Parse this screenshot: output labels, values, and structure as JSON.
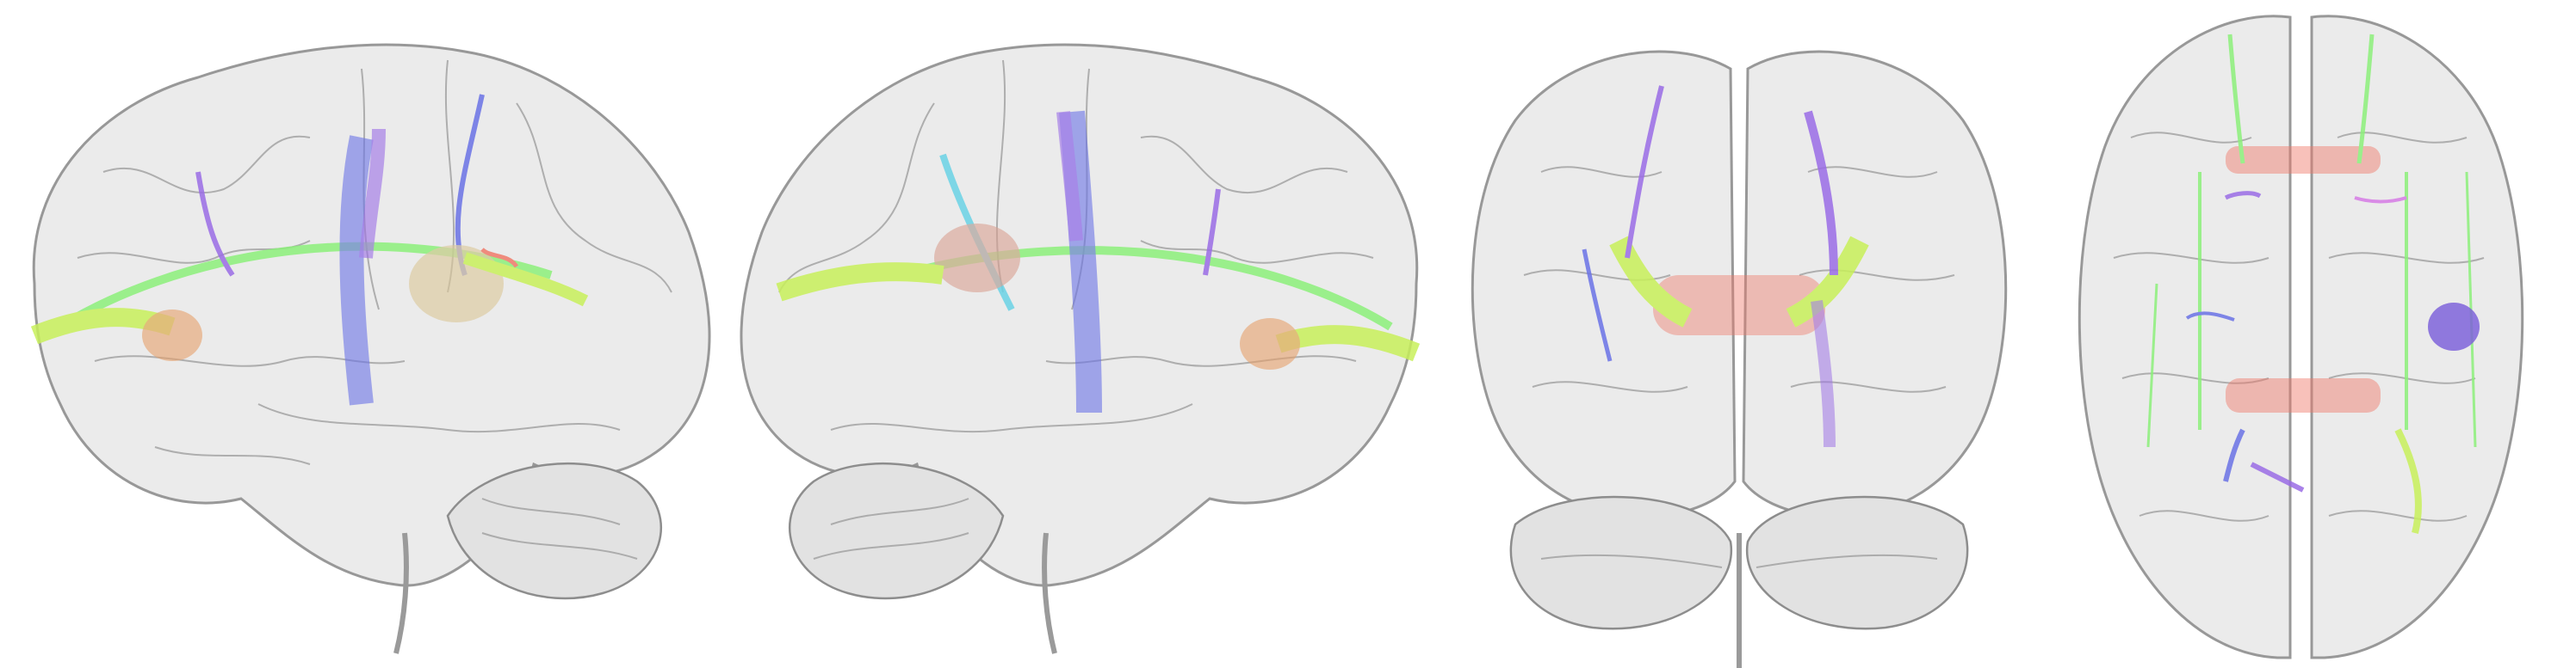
{
  "figure": {
    "views": [
      {
        "id": "left-lateral",
        "orientation": "lateral-left"
      },
      {
        "id": "right-lateral",
        "orientation": "lateral-right"
      },
      {
        "id": "posterior",
        "orientation": "posterior"
      },
      {
        "id": "superior",
        "orientation": "superior"
      }
    ]
  },
  "colors": {
    "background": "#ffffff",
    "brain_fill": "#e6e6e6",
    "brain_outline": "#8d8d8d",
    "sulci": "#9a9a9a",
    "tract_green": "#8cf07a",
    "tract_yellow_green": "#c8f05a",
    "tract_blue": "#6a72e6",
    "tract_violet": "#9a6ce6",
    "tract_red": "#f07a6a",
    "tract_cyan": "#6ad2e6",
    "tract_orange": "#e6a06a"
  }
}
